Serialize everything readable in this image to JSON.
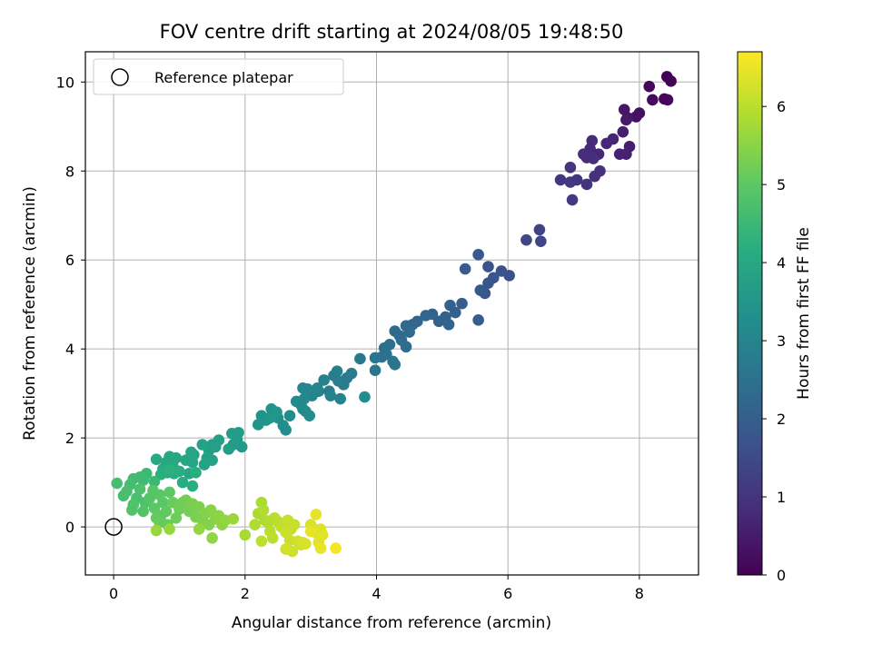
{
  "chart_data": {
    "type": "scatter",
    "title": "FOV centre drift starting at 2024/08/05 19:48:50",
    "xlabel": "Angular distance from reference (arcmin)",
    "ylabel": "Rotation from reference (arcmin)",
    "xlim": [
      -0.43,
      8.9
    ],
    "ylim": [
      -1.08,
      10.68
    ],
    "xticks": [
      0,
      2,
      4,
      6,
      8
    ],
    "yticks": [
      0,
      2,
      4,
      6,
      8,
      10
    ],
    "grid": true,
    "legend": {
      "placement": "top-left",
      "entries": [
        "Reference platepar"
      ]
    },
    "colorbar": {
      "label": "Hours from first FF file",
      "range": [
        0,
        6.7
      ],
      "ticks": [
        0,
        1,
        2,
        3,
        4,
        5,
        6
      ],
      "colormap": "viridis"
    },
    "reference_point": {
      "x": 0,
      "y": 0
    },
    "series": [
      {
        "values": [
          [
            8.42,
            10.12,
            0.0
          ],
          [
            8.48,
            10.02,
            0.05
          ],
          [
            8.38,
            9.62,
            0.1
          ],
          [
            8.43,
            9.6,
            0.12
          ],
          [
            8.15,
            9.9,
            0.15
          ],
          [
            8.2,
            9.6,
            0.2
          ],
          [
            8.0,
            9.3,
            0.28
          ],
          [
            7.95,
            9.22,
            0.33
          ],
          [
            7.82,
            9.2,
            0.38
          ],
          [
            7.77,
            9.38,
            0.42
          ],
          [
            7.8,
            9.15,
            0.45
          ],
          [
            7.85,
            8.55,
            0.55
          ],
          [
            7.75,
            8.88,
            0.58
          ],
          [
            7.8,
            8.38,
            0.62
          ],
          [
            7.7,
            8.38,
            0.65
          ],
          [
            7.6,
            8.72,
            0.68
          ],
          [
            7.5,
            8.62,
            0.72
          ],
          [
            7.38,
            8.38,
            0.75
          ],
          [
            7.28,
            8.68,
            0.78
          ],
          [
            7.25,
            8.5,
            0.8
          ],
          [
            7.2,
            8.3,
            0.83
          ],
          [
            7.15,
            8.38,
            0.85
          ],
          [
            7.3,
            8.28,
            0.88
          ],
          [
            7.32,
            7.88,
            0.9
          ],
          [
            7.4,
            8.0,
            0.93
          ],
          [
            7.2,
            7.7,
            0.97
          ],
          [
            7.05,
            7.8,
            1.0
          ],
          [
            6.95,
            8.08,
            1.02
          ],
          [
            6.8,
            7.8,
            1.05
          ],
          [
            6.95,
            7.75,
            1.08
          ],
          [
            6.98,
            7.35,
            1.12
          ],
          [
            6.48,
            6.68,
            1.35
          ],
          [
            6.5,
            6.42,
            1.38
          ],
          [
            6.28,
            6.45,
            1.42
          ],
          [
            6.02,
            5.65,
            1.65
          ],
          [
            5.9,
            5.75,
            1.68
          ],
          [
            5.7,
            5.85,
            1.72
          ],
          [
            5.78,
            5.6,
            1.75
          ],
          [
            5.7,
            5.48,
            1.78
          ],
          [
            5.65,
            5.25,
            1.82
          ],
          [
            5.55,
            6.12,
            1.85
          ],
          [
            5.58,
            5.32,
            1.88
          ],
          [
            5.35,
            5.8,
            1.9
          ],
          [
            5.55,
            4.65,
            1.95
          ],
          [
            5.3,
            5.02,
            2.0
          ],
          [
            5.12,
            4.98,
            2.02
          ],
          [
            5.2,
            4.82,
            2.05
          ],
          [
            5.05,
            4.72,
            2.08
          ],
          [
            4.95,
            4.62,
            2.1
          ],
          [
            4.85,
            4.78,
            2.13
          ],
          [
            4.75,
            4.75,
            2.16
          ],
          [
            5.1,
            4.55,
            2.18
          ],
          [
            4.62,
            4.62,
            2.2
          ],
          [
            4.55,
            4.55,
            2.23
          ],
          [
            4.45,
            4.52,
            2.25
          ],
          [
            4.35,
            4.3,
            2.28
          ],
          [
            4.5,
            4.38,
            2.3
          ],
          [
            4.28,
            4.4,
            2.33
          ],
          [
            4.38,
            4.2,
            2.35
          ],
          [
            4.45,
            4.05,
            2.38
          ],
          [
            4.2,
            4.1,
            2.41
          ],
          [
            4.12,
            4.02,
            2.44
          ],
          [
            4.08,
            3.82,
            2.47
          ],
          [
            4.15,
            3.88,
            2.5
          ],
          [
            4.25,
            3.72,
            2.53
          ],
          [
            3.98,
            3.8,
            2.56
          ],
          [
            4.28,
            3.65,
            2.58
          ],
          [
            3.98,
            3.52,
            2.62
          ],
          [
            3.75,
            3.78,
            2.65
          ],
          [
            3.55,
            3.35,
            2.72
          ],
          [
            3.62,
            3.45,
            2.75
          ],
          [
            3.5,
            3.2,
            2.78
          ],
          [
            3.35,
            3.4,
            2.8
          ],
          [
            3.42,
            3.28,
            2.83
          ],
          [
            3.28,
            3.05,
            2.85
          ],
          [
            3.4,
            3.5,
            2.87
          ],
          [
            3.2,
            3.3,
            2.9
          ],
          [
            3.12,
            3.05,
            2.93
          ],
          [
            3.3,
            2.95,
            2.95
          ],
          [
            3.45,
            2.88,
            2.98
          ],
          [
            3.1,
            3.12,
            3.0
          ],
          [
            3.02,
            2.95,
            3.02
          ],
          [
            2.95,
            3.1,
            3.05
          ],
          [
            2.88,
            3.12,
            3.08
          ],
          [
            2.9,
            2.88,
            3.1
          ],
          [
            2.85,
            2.75,
            3.12
          ],
          [
            2.78,
            2.82,
            3.15
          ],
          [
            2.88,
            2.65,
            3.18
          ],
          [
            2.92,
            2.6,
            3.2
          ],
          [
            2.98,
            2.5,
            3.22
          ],
          [
            3.82,
            2.92,
            3.25
          ],
          [
            2.68,
            2.5,
            3.28
          ],
          [
            2.58,
            2.28,
            3.3
          ],
          [
            2.62,
            2.18,
            3.32
          ],
          [
            2.5,
            2.45,
            3.35
          ],
          [
            2.4,
            2.65,
            3.38
          ],
          [
            2.32,
            2.4,
            3.4
          ],
          [
            2.25,
            2.5,
            3.42
          ],
          [
            2.2,
            2.3,
            3.45
          ],
          [
            2.38,
            2.45,
            3.48
          ],
          [
            2.48,
            2.58,
            3.5
          ],
          [
            1.95,
            1.8,
            3.6
          ],
          [
            1.88,
            1.95,
            3.62
          ],
          [
            1.82,
            1.85,
            3.64
          ],
          [
            1.9,
            2.12,
            3.66
          ],
          [
            1.8,
            2.1,
            3.68
          ],
          [
            1.75,
            1.75,
            3.7
          ],
          [
            1.6,
            1.95,
            3.72
          ],
          [
            1.5,
            1.85,
            3.74
          ],
          [
            1.45,
            1.72,
            3.76
          ],
          [
            1.55,
            1.8,
            3.78
          ],
          [
            1.42,
            1.55,
            3.8
          ],
          [
            1.35,
            1.85,
            3.82
          ],
          [
            1.5,
            1.5,
            3.84
          ],
          [
            1.38,
            1.4,
            3.86
          ],
          [
            1.22,
            1.62,
            3.88
          ],
          [
            1.18,
            1.68,
            3.9
          ],
          [
            1.2,
            1.45,
            3.92
          ],
          [
            1.1,
            1.5,
            3.94
          ],
          [
            1.15,
            1.2,
            3.96
          ],
          [
            0.95,
            1.55,
            3.98
          ],
          [
            0.85,
            1.58,
            4.0
          ],
          [
            0.8,
            1.45,
            4.02
          ],
          [
            0.9,
            1.38,
            4.04
          ],
          [
            0.75,
            1.3,
            4.06
          ],
          [
            0.65,
            1.52,
            4.08
          ],
          [
            0.92,
            1.2,
            4.1
          ],
          [
            0.82,
            1.22,
            4.12
          ],
          [
            1.05,
            1.0,
            4.14
          ],
          [
            1.0,
            1.25,
            4.16
          ],
          [
            1.2,
            0.92,
            4.18
          ],
          [
            1.25,
            1.22,
            4.2
          ],
          [
            0.72,
            1.18,
            4.22
          ],
          [
            0.85,
            1.28,
            4.24
          ],
          [
            0.62,
            1.02,
            4.5
          ],
          [
            0.5,
            1.2,
            4.52
          ],
          [
            0.45,
            1.05,
            4.55
          ],
          [
            0.4,
            1.12,
            4.58
          ],
          [
            0.3,
            1.08,
            4.6
          ],
          [
            0.25,
            0.95,
            4.62
          ],
          [
            0.05,
            0.98,
            4.65
          ],
          [
            0.2,
            0.8,
            4.68
          ],
          [
            0.15,
            0.7,
            4.7
          ],
          [
            0.35,
            0.65,
            4.72
          ],
          [
            0.4,
            0.85,
            4.75
          ],
          [
            0.48,
            0.55,
            4.78
          ],
          [
            0.3,
            0.5,
            4.8
          ],
          [
            0.28,
            0.38,
            4.82
          ],
          [
            0.45,
            0.35,
            4.85
          ],
          [
            0.55,
            0.65,
            4.88
          ],
          [
            0.6,
            0.82,
            4.9
          ],
          [
            0.7,
            0.72,
            4.92
          ],
          [
            0.75,
            0.55,
            4.95
          ],
          [
            0.85,
            0.78,
            4.98
          ],
          [
            0.62,
            0.42,
            5.0
          ],
          [
            0.72,
            0.25,
            5.02
          ],
          [
            0.8,
            0.35,
            5.05
          ],
          [
            0.65,
            0.2,
            5.08
          ],
          [
            0.7,
            0.1,
            5.1
          ],
          [
            0.82,
            0.05,
            5.12
          ],
          [
            0.9,
            0.55,
            5.15
          ],
          [
            0.95,
            0.2,
            5.18
          ],
          [
            1.0,
            0.4,
            5.2
          ],
          [
            1.05,
            0.55,
            5.22
          ],
          [
            1.1,
            0.6,
            5.25
          ],
          [
            1.15,
            0.35,
            5.28
          ],
          [
            1.2,
            0.52,
            5.3
          ],
          [
            1.25,
            0.22,
            5.32
          ],
          [
            1.3,
            0.45,
            5.35
          ],
          [
            1.35,
            0.15,
            5.38
          ],
          [
            1.4,
            0.3,
            5.4
          ],
          [
            1.45,
            0.05,
            5.42
          ],
          [
            1.55,
            0.18,
            5.45
          ],
          [
            1.48,
            0.38,
            5.48
          ],
          [
            1.6,
            0.25,
            5.5
          ],
          [
            1.65,
            0.05,
            5.52
          ],
          [
            1.5,
            -0.25,
            5.55
          ],
          [
            1.7,
            0.15,
            5.58
          ],
          [
            1.3,
            -0.05,
            5.6
          ],
          [
            0.85,
            -0.05,
            5.62
          ],
          [
            0.65,
            -0.08,
            5.64
          ],
          [
            1.82,
            0.18,
            5.66
          ],
          [
            2.0,
            -0.18,
            5.8
          ],
          [
            2.2,
            0.3,
            5.82
          ],
          [
            2.25,
            0.55,
            5.84
          ],
          [
            2.3,
            0.15,
            5.86
          ],
          [
            2.15,
            0.05,
            5.88
          ],
          [
            2.28,
            0.38,
            5.9
          ],
          [
            2.35,
            0.1,
            5.92
          ],
          [
            2.4,
            0.15,
            5.94
          ],
          [
            2.45,
            0.2,
            5.96
          ],
          [
            2.5,
            0.12,
            5.98
          ],
          [
            2.38,
            -0.1,
            6.0
          ],
          [
            2.42,
            -0.25,
            6.02
          ],
          [
            2.25,
            -0.32,
            6.04
          ],
          [
            2.55,
            0.0,
            6.06
          ],
          [
            2.6,
            0.05,
            6.08
          ],
          [
            2.65,
            0.15,
            6.1
          ],
          [
            2.7,
            -0.05,
            6.12
          ],
          [
            2.75,
            0.05,
            6.14
          ],
          [
            2.62,
            -0.12,
            6.16
          ],
          [
            2.68,
            -0.3,
            6.18
          ],
          [
            2.72,
            -0.55,
            6.2
          ],
          [
            2.8,
            -0.32,
            6.22
          ],
          [
            2.85,
            -0.4,
            6.24
          ],
          [
            2.62,
            -0.5,
            6.26
          ],
          [
            2.88,
            -0.35,
            6.28
          ],
          [
            2.92,
            -0.38,
            6.3
          ],
          [
            3.0,
            0.05,
            6.32
          ],
          [
            3.05,
            -0.05,
            6.34
          ],
          [
            3.1,
            -0.15,
            6.36
          ],
          [
            3.15,
            -0.05,
            6.38
          ],
          [
            3.18,
            -0.18,
            6.4
          ],
          [
            3.12,
            -0.35,
            6.42
          ],
          [
            3.08,
            0.28,
            6.44
          ],
          [
            3.0,
            -0.1,
            6.46
          ],
          [
            3.15,
            -0.48,
            6.5
          ],
          [
            3.38,
            -0.48,
            6.6
          ]
        ]
      }
    ]
  }
}
